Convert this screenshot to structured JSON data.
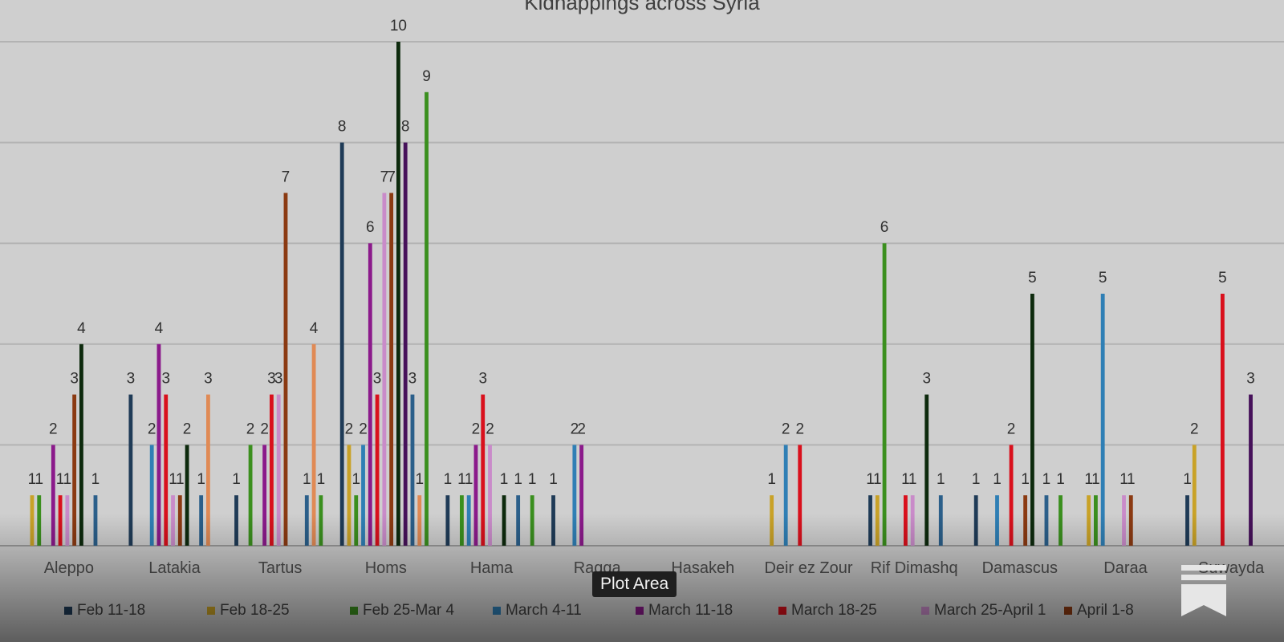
{
  "chart_data": {
    "type": "bar",
    "title": "Kidnappings across Syria",
    "categories": [
      "Aleppo",
      "Latakia",
      "Tartus",
      "Homs",
      "Hama",
      "Raqqa",
      "Hasakeh",
      "Deir ez Zour",
      "Rif Dimashq",
      "Damascus",
      "Daraa",
      "Suwayda"
    ],
    "ylim": [
      0,
      10
    ],
    "grid": true,
    "legend_position": "bottom",
    "series": [
      {
        "name": "Feb 11-18",
        "color": "#1f3b57",
        "values": [
          0,
          3,
          1,
          8,
          1,
          1,
          0,
          0,
          1,
          1,
          0,
          1
        ]
      },
      {
        "name": "Feb 18-25",
        "color": "#c9a227",
        "values": [
          1,
          0,
          0,
          2,
          0,
          0,
          0,
          1,
          1,
          0,
          1,
          2
        ]
      },
      {
        "name": "Feb 25-Mar 4",
        "color": "#3b8f1e",
        "values": [
          1,
          0,
          2,
          1,
          1,
          0,
          0,
          0,
          6,
          0,
          1,
          0
        ]
      },
      {
        "name": "March 4-11",
        "color": "#2f7fb5",
        "values": [
          0,
          2,
          0,
          2,
          1,
          2,
          0,
          2,
          0,
          1,
          5,
          0
        ]
      },
      {
        "name": "March 11-18",
        "color": "#8b1a8b",
        "values": [
          2,
          4,
          2,
          6,
          2,
          2,
          0,
          0,
          0,
          0,
          0,
          0
        ]
      },
      {
        "name": "March 18-25",
        "color": "#d9101c",
        "values": [
          1,
          3,
          3,
          3,
          3,
          0,
          0,
          2,
          1,
          2,
          0,
          5
        ]
      },
      {
        "name": "March 25-April 1",
        "color": "#c98bc9",
        "values": [
          1,
          1,
          3,
          7,
          2,
          0,
          0,
          0,
          1,
          0,
          1,
          0
        ]
      },
      {
        "name": "April 1-8",
        "color": "#8b3a12",
        "values": [
          3,
          1,
          7,
          7,
          0,
          0,
          0,
          0,
          0,
          1,
          1,
          0
        ]
      },
      {
        "name": "",
        "color": "#0d2a0d",
        "values": [
          4,
          2,
          0,
          10,
          1,
          0,
          0,
          0,
          3,
          5,
          0,
          0
        ]
      },
      {
        "name": "",
        "color": "#46115a",
        "values": [
          0,
          0,
          0,
          8,
          0,
          0,
          0,
          0,
          0,
          0,
          0,
          3
        ]
      },
      {
        "name": "",
        "color": "#2b5f8a",
        "values": [
          1,
          1,
          1,
          3,
          1,
          0,
          0,
          0,
          1,
          1,
          0,
          0
        ]
      },
      {
        "name": "",
        "color": "#e08a55",
        "values": [
          0,
          3,
          4,
          1,
          0,
          0,
          0,
          0,
          0,
          0,
          0,
          0
        ]
      },
      {
        "name": "",
        "color": "#3a8f1e",
        "values": [
          0,
          0,
          1,
          9,
          1,
          0,
          0,
          0,
          0,
          1,
          0,
          0
        ]
      }
    ]
  },
  "tooltip": {
    "text": "Plot Area"
  },
  "icons": {
    "corner": "bookmark-icon"
  }
}
